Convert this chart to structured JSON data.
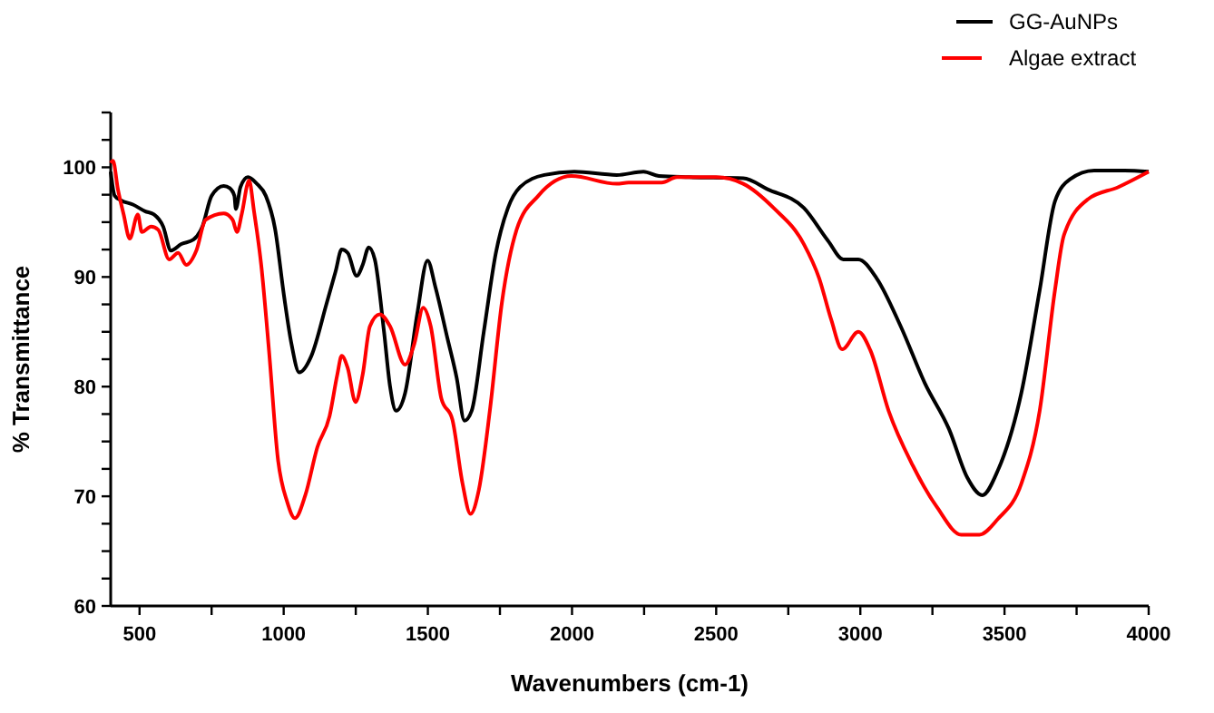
{
  "chart_data": {
    "type": "line",
    "xlabel": "Wavenumbers (cm-1)",
    "ylabel": "% Transmittance",
    "xlim": [
      400,
      4000
    ],
    "ylim": [
      60,
      105
    ],
    "xticks": [
      500,
      {
        "value": 750,
        "label": null
      },
      1000,
      {
        "value": 1250,
        "label": null
      },
      1500,
      {
        "value": 1750,
        "label": null
      },
      2000,
      {
        "value": 2250,
        "label": null
      },
      2500,
      {
        "value": 2750,
        "label": null
      },
      3000,
      {
        "value": 3250,
        "label": null
      },
      3500,
      {
        "value": 3750,
        "label": null
      },
      4000
    ],
    "yticks": [
      60,
      {
        "value": 62.5,
        "label": null
      },
      {
        "value": 65,
        "label": null
      },
      {
        "value": 67.5,
        "label": null
      },
      70,
      {
        "value": 72.5,
        "label": null
      },
      {
        "value": 75,
        "label": null
      },
      {
        "value": 77.5,
        "label": null
      },
      80,
      {
        "value": 82.5,
        "label": null
      },
      {
        "value": 85,
        "label": null
      },
      {
        "value": 87.5,
        "label": null
      },
      90,
      {
        "value": 92.5,
        "label": null
      },
      {
        "value": 95,
        "label": null
      },
      {
        "value": 97.5,
        "label": null
      },
      100,
      {
        "value": 102.5,
        "label": null
      },
      {
        "value": 105,
        "label": null
      }
    ],
    "grid": false,
    "legend": "top right",
    "line_style": "solid",
    "marker": "none",
    "series": [
      {
        "name": "GG-AuNPs",
        "color": "#000000",
        "x": [
          400,
          414,
          435,
          477,
          519,
          550,
          582,
          609,
          645,
          687,
          718,
          750,
          792,
          813,
          829,
          834,
          850,
          876,
          907,
          938,
          970,
          1001,
          1027,
          1054,
          1096,
          1148,
          1180,
          1201,
          1222,
          1253,
          1274,
          1295,
          1316,
          1348,
          1369,
          1390,
          1421,
          1463,
          1499,
          1526,
          1568,
          1600,
          1627,
          1652,
          1694,
          1736,
          1778,
          1820,
          1904,
          2008,
          2155,
          2248,
          2301,
          2406,
          2594,
          2678,
          2804,
          2888,
          2941,
          2993,
          3056,
          3140,
          3224,
          3308,
          3371,
          3423,
          3476,
          3559,
          3622,
          3675,
          3727,
          3811,
          3916,
          4000
        ],
        "values": [
          99.6,
          97.4,
          97.0,
          96.6,
          96.0,
          95.7,
          94.6,
          92.4,
          93.0,
          93.4,
          94.6,
          97.4,
          98.3,
          98.1,
          97.4,
          96.2,
          98.2,
          99.1,
          98.5,
          97.4,
          94.4,
          88.3,
          83.9,
          81.3,
          82.8,
          87.5,
          90.5,
          92.5,
          92.2,
          90.1,
          91.1,
          92.7,
          91.6,
          85.0,
          80.0,
          77.8,
          79.4,
          86.6,
          91.5,
          89.1,
          84.4,
          80.8,
          76.9,
          77.8,
          85.0,
          92.2,
          96.3,
          98.2,
          99.3,
          99.6,
          99.3,
          99.6,
          99.2,
          99.1,
          99.0,
          98.0,
          96.3,
          93.3,
          91.6,
          91.6,
          89.9,
          85.5,
          80.3,
          76.1,
          71.7,
          70.1,
          72.3,
          79.5,
          88.8,
          96.9,
          98.9,
          99.7,
          99.7,
          99.6
        ]
      },
      {
        "name": "Algae extract",
        "color": "#ff0000",
        "x": [
          400,
          408,
          425,
          445,
          466,
          494,
          508,
          540,
          565,
          603,
          634,
          662,
          697,
          729,
          792,
          823,
          838,
          855,
          880,
          897,
          922,
          949,
          980,
          1012,
          1039,
          1075,
          1117,
          1159,
          1186,
          1201,
          1222,
          1249,
          1274,
          1299,
          1333,
          1369,
          1421,
          1453,
          1484,
          1510,
          1547,
          1585,
          1620,
          1648,
          1677,
          1715,
          1757,
          1809,
          1883,
          1998,
          2155,
          2196,
          2311,
          2364,
          2500,
          2594,
          2699,
          2804,
          2857,
          2899,
          2937,
          2993,
          3035,
          3098,
          3182,
          3266,
          3350,
          3413,
          3476,
          3559,
          3622,
          3675,
          3706,
          3790,
          3895,
          4000
        ],
        "values": [
          100.4,
          100.6,
          98.0,
          95.7,
          93.5,
          95.7,
          94.1,
          94.6,
          94.3,
          91.6,
          92.2,
          91.1,
          92.4,
          95.2,
          95.8,
          95.2,
          94.1,
          95.8,
          98.8,
          96.0,
          91.1,
          83.3,
          73.4,
          69.5,
          68.0,
          70.1,
          74.5,
          77.3,
          81.1,
          82.8,
          81.7,
          78.6,
          81.1,
          85.5,
          86.6,
          85.5,
          82.0,
          83.9,
          87.2,
          85.5,
          78.9,
          77.0,
          71.2,
          68.4,
          70.6,
          77.8,
          87.7,
          94.4,
          97.4,
          99.2,
          98.5,
          98.6,
          98.6,
          99.1,
          99.1,
          98.5,
          96.3,
          93.0,
          89.9,
          86.1,
          83.4,
          85.0,
          83.3,
          77.8,
          72.8,
          69.0,
          66.5,
          66.5,
          67.9,
          71.2,
          77.8,
          88.8,
          93.8,
          97.1,
          98.2,
          99.6
        ]
      }
    ]
  }
}
